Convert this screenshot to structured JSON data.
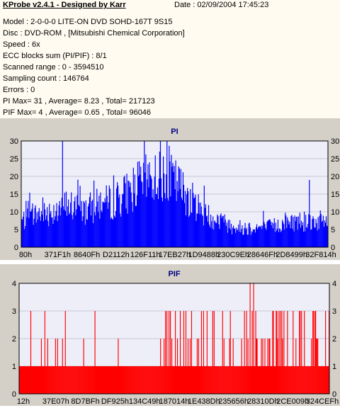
{
  "header": {
    "title": "KProbe v2.4.1 - Designed by Karr",
    "date": "Date : 02/09/2004 17:45:23"
  },
  "info_lines": [
    "Model : 2-0-0-0 LITE-ON DVD SOHD-167T    9S15",
    "Disc : DVD-ROM ,  [Mitsubishi Chemical Corporation]",
    "Speed : 6x",
    "ECC blocks sum (PI/PIF) : 8/1",
    "Scanned range : 0 - 3594510",
    "Sampling count : 146764",
    "Errors : 0",
    "PI Max= 31 , Average= 8.23 , Total= 217123",
    "PIF Max= 4 , Average= 0.65 , Total= 96046"
  ],
  "colors": {
    "pi_bars": "#0000ff",
    "pif_bars": "#ff0000",
    "plot_bg": "#eeeef8",
    "panel_bg": "#d4d0c8"
  },
  "chart_data": [
    {
      "type": "bar",
      "title": "PI",
      "xlabel": "",
      "ylabel": "",
      "ylim": [
        0,
        30
      ],
      "yticks": [
        "0",
        "5",
        "10",
        "15",
        "20",
        "25",
        "30"
      ],
      "xtick_labels": [
        "80h",
        "371F1h",
        "8640Fh",
        "D2112h",
        "126F11h",
        "17EB27h",
        "1D9488h",
        "230C9Eh",
        "28646Fh",
        "2D8499h",
        "32F814h"
      ],
      "right_axis": true,
      "grid": "horizontal",
      "bins": 420,
      "envelope_x_fraction": [
        0.0,
        0.05,
        0.1,
        0.15,
        0.2,
        0.25,
        0.3,
        0.35,
        0.4,
        0.45,
        0.5,
        0.55,
        0.6,
        0.65,
        0.7,
        0.75,
        0.8,
        0.85,
        0.9,
        0.95,
        1.0
      ],
      "envelope_y": [
        8,
        10,
        11,
        13,
        11,
        13,
        14,
        17,
        20,
        22,
        20,
        15,
        10,
        8,
        6,
        6,
        6,
        7,
        8,
        8,
        8
      ],
      "max": 31,
      "average": 8.23
    },
    {
      "type": "bar",
      "title": "PIF",
      "xlabel": "",
      "ylabel": "",
      "ylim": [
        0,
        4
      ],
      "yticks": [
        "0",
        "1",
        "2",
        "3",
        "4"
      ],
      "xtick_labels": [
        "12h",
        "37E07h",
        "8D7BFh",
        "DF925h",
        "134C49h",
        "187014h",
        "1E438Dh",
        "235656h",
        "28310Dh",
        "2CE009h",
        "324CEFh"
      ],
      "right_axis": true,
      "grid": "horizontal",
      "bins": 440,
      "base_level": 1,
      "max": 4,
      "average": 0.65
    }
  ]
}
